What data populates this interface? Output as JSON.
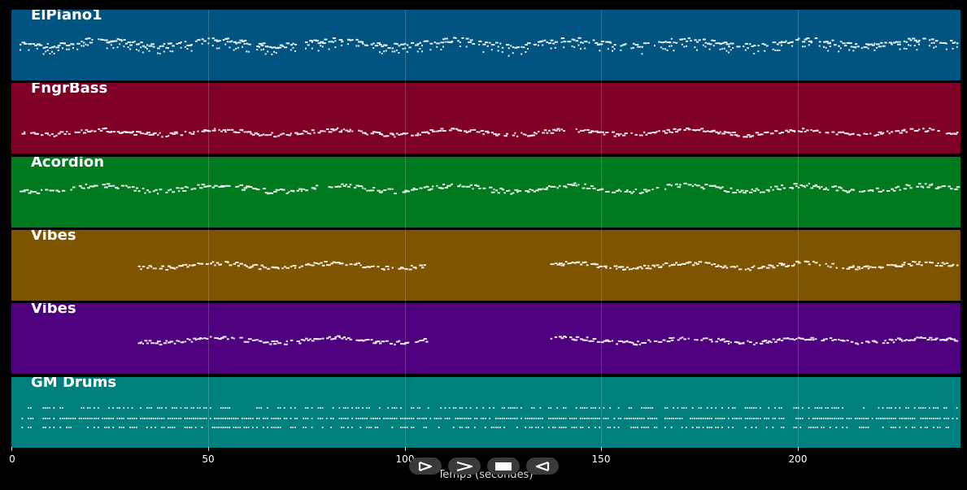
{
  "tracks": [
    {
      "name": "ElPiano1",
      "color": "#00547F"
    },
    {
      "name": "FngrBass",
      "color": "#7F0027"
    },
    {
      "name": "Acordion",
      "color": "#00791F"
    },
    {
      "name": "Vibes",
      "color": "#7F5400"
    },
    {
      "name": "Vibes",
      "color": "#4F007F"
    },
    {
      "name": "GM Drums",
      "color": "#007F7F"
    }
  ],
  "xaxis": {
    "title": "Temps (secondes)",
    "ticks": [
      "0",
      "50",
      "100",
      "150",
      "200"
    ],
    "tick_values": [
      0,
      50,
      100,
      150,
      200
    ],
    "max": 241
  },
  "controls": [
    {
      "name": "play-button",
      "icon": "play-icon"
    },
    {
      "name": "forward-button",
      "icon": "chevron-right-icon"
    },
    {
      "name": "stop-button",
      "icon": "stop-icon"
    },
    {
      "name": "rewind-button",
      "icon": "triangle-left-icon"
    }
  ]
}
